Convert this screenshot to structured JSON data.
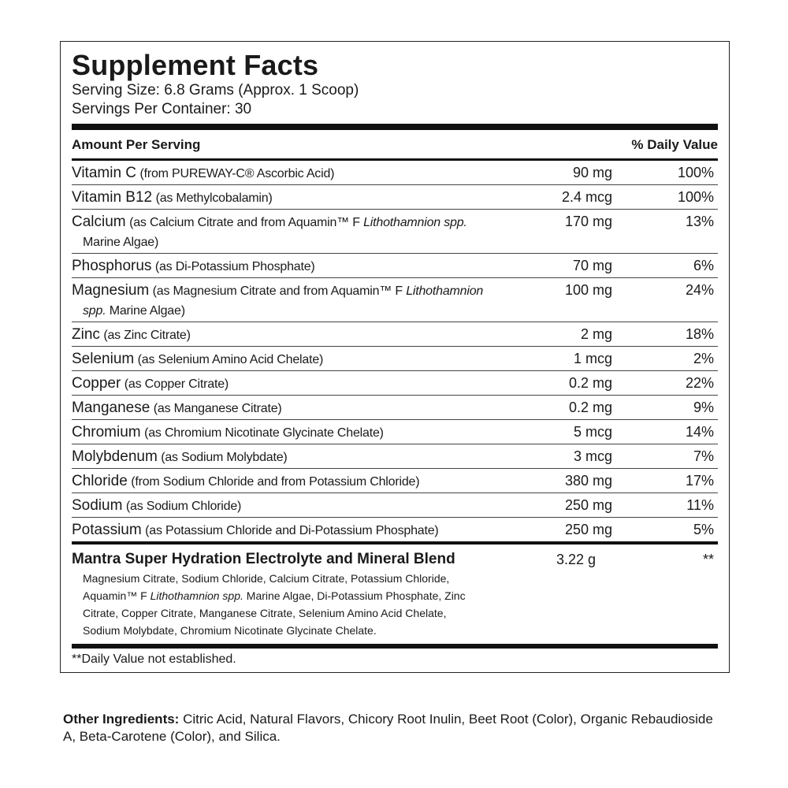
{
  "title": "Supplement Facts",
  "serving_size": "Serving Size: 6.8 Grams (Approx. 1 Scoop)",
  "servings_per_container": "Servings Per Container: 30",
  "header": {
    "amount": "Amount Per Serving",
    "dv": "% Daily Value"
  },
  "rows": [
    {
      "name": "Vitamin C",
      "source": [
        "(from PUREWAY-C® Ascorbic Acid)"
      ],
      "amount": "90 mg",
      "dv": "100%"
    },
    {
      "name": "Vitamin B12",
      "source": [
        "(as Methylcobalamin)"
      ],
      "amount": "2.4 mcg",
      "dv": "100%"
    },
    {
      "name": "Calcium",
      "source": [
        "(as Calcium Citrate and from Aquamin™ F ",
        {
          "italic": "Lithothamnion spp."
        },
        " Marine Algae)"
      ],
      "amount": "170 mg",
      "dv": "13%"
    },
    {
      "name": "Phosphorus",
      "source": [
        "(as Di-Potassium Phosphate)"
      ],
      "amount": "70 mg",
      "dv": "6%"
    },
    {
      "name": "Magnesium",
      "source": [
        "(as Magnesium Citrate and from Aquamin™ F ",
        {
          "italic": "Lithothamnion spp."
        },
        " Marine Algae)"
      ],
      "amount": "100 mg",
      "dv": "24%"
    },
    {
      "name": "Zinc",
      "source": [
        "(as Zinc Citrate)"
      ],
      "amount": "2 mg",
      "dv": "18%"
    },
    {
      "name": "Selenium",
      "source": [
        "(as Selenium Amino Acid Chelate)"
      ],
      "amount": "1 mcg",
      "dv": "2%"
    },
    {
      "name": "Copper",
      "source": [
        "(as Copper Citrate)"
      ],
      "amount": "0.2 mg",
      "dv": "22%"
    },
    {
      "name": "Manganese",
      "source": [
        "(as Manganese Citrate)"
      ],
      "amount": "0.2 mg",
      "dv": "9%"
    },
    {
      "name": "Chromium",
      "source": [
        "(as Chromium Nicotinate Glycinate Chelate)"
      ],
      "amount": "5 mcg",
      "dv": "14%"
    },
    {
      "name": "Molybdenum",
      "source": [
        "(as Sodium Molybdate)"
      ],
      "amount": "3 mcg",
      "dv": "7%"
    },
    {
      "name": "Chloride",
      "source": [
        "(from Sodium Chloride and from Potassium Chloride)"
      ],
      "amount": "380 mg",
      "dv": "17%"
    },
    {
      "name": "Sodium",
      "source": [
        "(as Sodium Chloride)"
      ],
      "amount": "250 mg",
      "dv": "11%"
    },
    {
      "name": "Potassium",
      "source": [
        "(as Potassium Chloride and Di-Potassium Phosphate)"
      ],
      "amount": "250 mg",
      "dv": "5%"
    }
  ],
  "blend": {
    "name": "Mantra Super Hydration Electrolyte and Mineral Blend",
    "amount": "3.22 g",
    "dv": "**",
    "ingredients": [
      "Magnesium Citrate, Sodium Chloride, Calcium Citrate, Potassium Chloride, Aquamin™ F ",
      {
        "italic": "Lithothamnion spp."
      },
      " Marine Algae, Di-Potassium Phosphate, Zinc Citrate, Copper Citrate, Manganese Citrate, Selenium Amino Acid Chelate, Sodium Molybdate, Chromium Nicotinate Glycinate Chelate."
    ]
  },
  "footnote": "**Daily Value not established.",
  "other_ingredients": {
    "label": "Other Ingredients:",
    "text": "Citric Acid, Natural Flavors, Chicory Root Inulin, Beet Root (Color), Organic Rebaudioside A, Beta-Carotene (Color), and Silica."
  }
}
